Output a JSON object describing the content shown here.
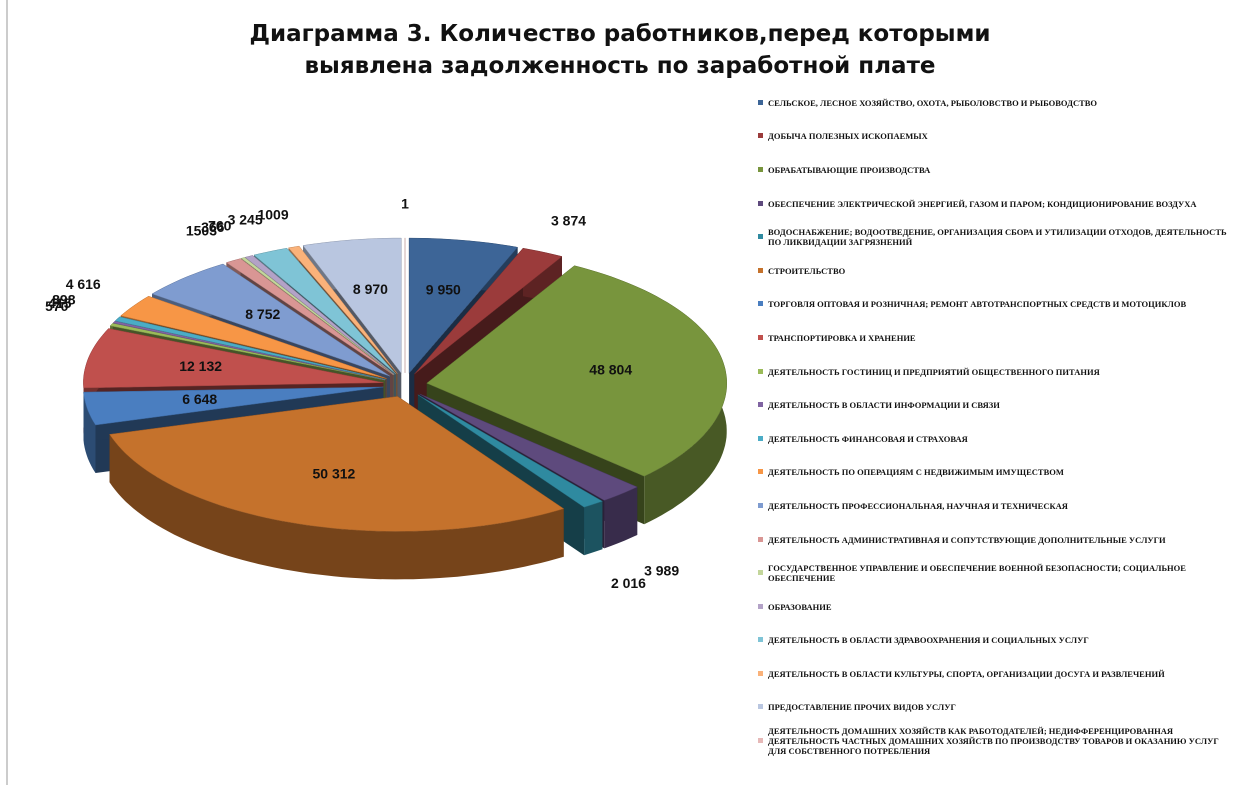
{
  "chart_data": {
    "type": "pie3d",
    "title": "Диаграмма 3. Количество работников,перед которыми выявлена задолженность по заработной плате",
    "categories": [
      "СЕЛЬСКОЕ, ЛЕСНОЕ ХОЗЯЙСТВО, ОХОТА, РЫБОЛОВСТВО И РЫБОВОДСТВО",
      "ДОБЫЧА ПОЛЕЗНЫХ ИСКОПАЕМЫХ",
      "ОБРАБАТЫВАЮЩИЕ ПРОИЗВОДСТВА",
      "ОБЕСПЕЧЕНИЕ ЭЛЕКТРИЧЕСКОЙ ЭНЕРГИЕЙ, ГАЗОМ И ПАРОМ; КОНДИЦИОНИРОВАНИЕ ВОЗДУХА",
      "ВОДОСНАБЖЕНИЕ; ВОДООТВЕДЕНИЕ, ОРГАНИЗАЦИЯ СБОРА И УТИЛИЗАЦИИ ОТХОДОВ, ДЕЯТЕЛЬНОСТЬ ПО ЛИКВИДАЦИИ ЗАГРЯЗНЕНИЙ",
      "СТРОИТЕЛЬСТВО",
      "ТОРГОВЛЯ ОПТОВАЯ И РОЗНИЧНАЯ; РЕМОНТ АВТОТРАНСПОРТНЫХ СРЕДСТВ И МОТОЦИКЛОВ",
      "ТРАНСПОРТИРОВКА И ХРАНЕНИЕ",
      "ДЕЯТЕЛЬНОСТЬ ГОСТИНИЦ И ПРЕДПРИЯТИЙ ОБЩЕСТВЕННОГО ПИТАНИЯ",
      "ДЕЯТЕЛЬНОСТЬ В ОБЛАСТИ ИНФОРМАЦИИ И СВЯЗИ",
      "ДЕЯТЕЛЬНОСТЬ ФИНАНСОВАЯ И СТРАХОВАЯ",
      "ДЕЯТЕЛЬНОСТЬ ПО ОПЕРАЦИЯМ С НЕДВИЖИМЫМ ИМУЩЕСТВОМ",
      "ДЕЯТЕЛЬНОСТЬ ПРОФЕССИОНАЛЬНАЯ, НАУЧНАЯ И ТЕХНИЧЕСКАЯ",
      "ДЕЯТЕЛЬНОСТЬ АДМИНИСТРАТИВНАЯ И СОПУТСТВУЮЩИЕ ДОПОЛНИТЕЛЬНЫЕ УСЛУГИ",
      "ГОСУДАРСТВЕННОЕ УПРАВЛЕНИЕ И ОБЕСПЕЧЕНИЕ ВОЕННОЙ БЕЗОПАСНОСТИ; СОЦИАЛЬНОЕ ОБЕСПЕЧЕНИЕ",
      "ОБРАЗОВАНИЕ",
      "ДЕЯТЕЛЬНОСТЬ В ОБЛАСТИ ЗДРАВООХРАНЕНИЯ И СОЦИАЛЬНЫХ УСЛУГ",
      "ДЕЯТЕЛЬНОСТЬ В ОБЛАСТИ КУЛЬТУРЫ, СПОРТА, ОРГАНИЗАЦИИ ДОСУГА И РАЗВЛЕЧЕНИЙ",
      "ПРЕДОСТАВЛЕНИЕ ПРОЧИХ ВИДОВ УСЛУГ",
      "ДЕЯТЕЛЬНОСТЬ ДОМАШНИХ ХОЗЯЙСТВ КАК РАБОТОДАТЕЛЕЙ; НЕДИФФЕРЕНЦИРОВАННАЯ ДЕЯТЕЛЬНОСТЬ ЧАСТНЫХ ДОМАШНИХ ХОЗЯЙСТВ ПО ПРОИЗВОДСТВУ ТОВАРОВ И ОКАЗАНИЮ УСЛУГ ДЛЯ СОБСТВЕННОГО ПОТРЕБЛЕНИЯ"
    ],
    "values": [
      9950,
      3874,
      48804,
      3989,
      2016,
      50312,
      6648,
      12132,
      570,
      415,
      898,
      4616,
      8752,
      1503,
      366,
      760,
      3245,
      1009,
      8970,
      1
    ],
    "value_labels": [
      "9 950",
      "3 874",
      "48 804",
      "3 989",
      "2 016",
      "50 312",
      "6 648",
      "12 132",
      "570",
      "415",
      "898",
      "4 616",
      "8 752",
      "1503",
      "366",
      "760",
      "3 245",
      "1009",
      "8 970",
      "1"
    ],
    "colors": [
      "#3d6597",
      "#9b3b3b",
      "#78953d",
      "#5e4a7d",
      "#2f8aa0",
      "#c5722c",
      "#4a7ec0",
      "#c0504d",
      "#9bbb59",
      "#8064a2",
      "#4bacc6",
      "#f79646",
      "#7f9cd0",
      "#d99694",
      "#c3d69b",
      "#b3a2c7",
      "#7fc4d6",
      "#fab27a",
      "#b9c6e0",
      "#e6b9b8"
    ],
    "legend": "right"
  }
}
